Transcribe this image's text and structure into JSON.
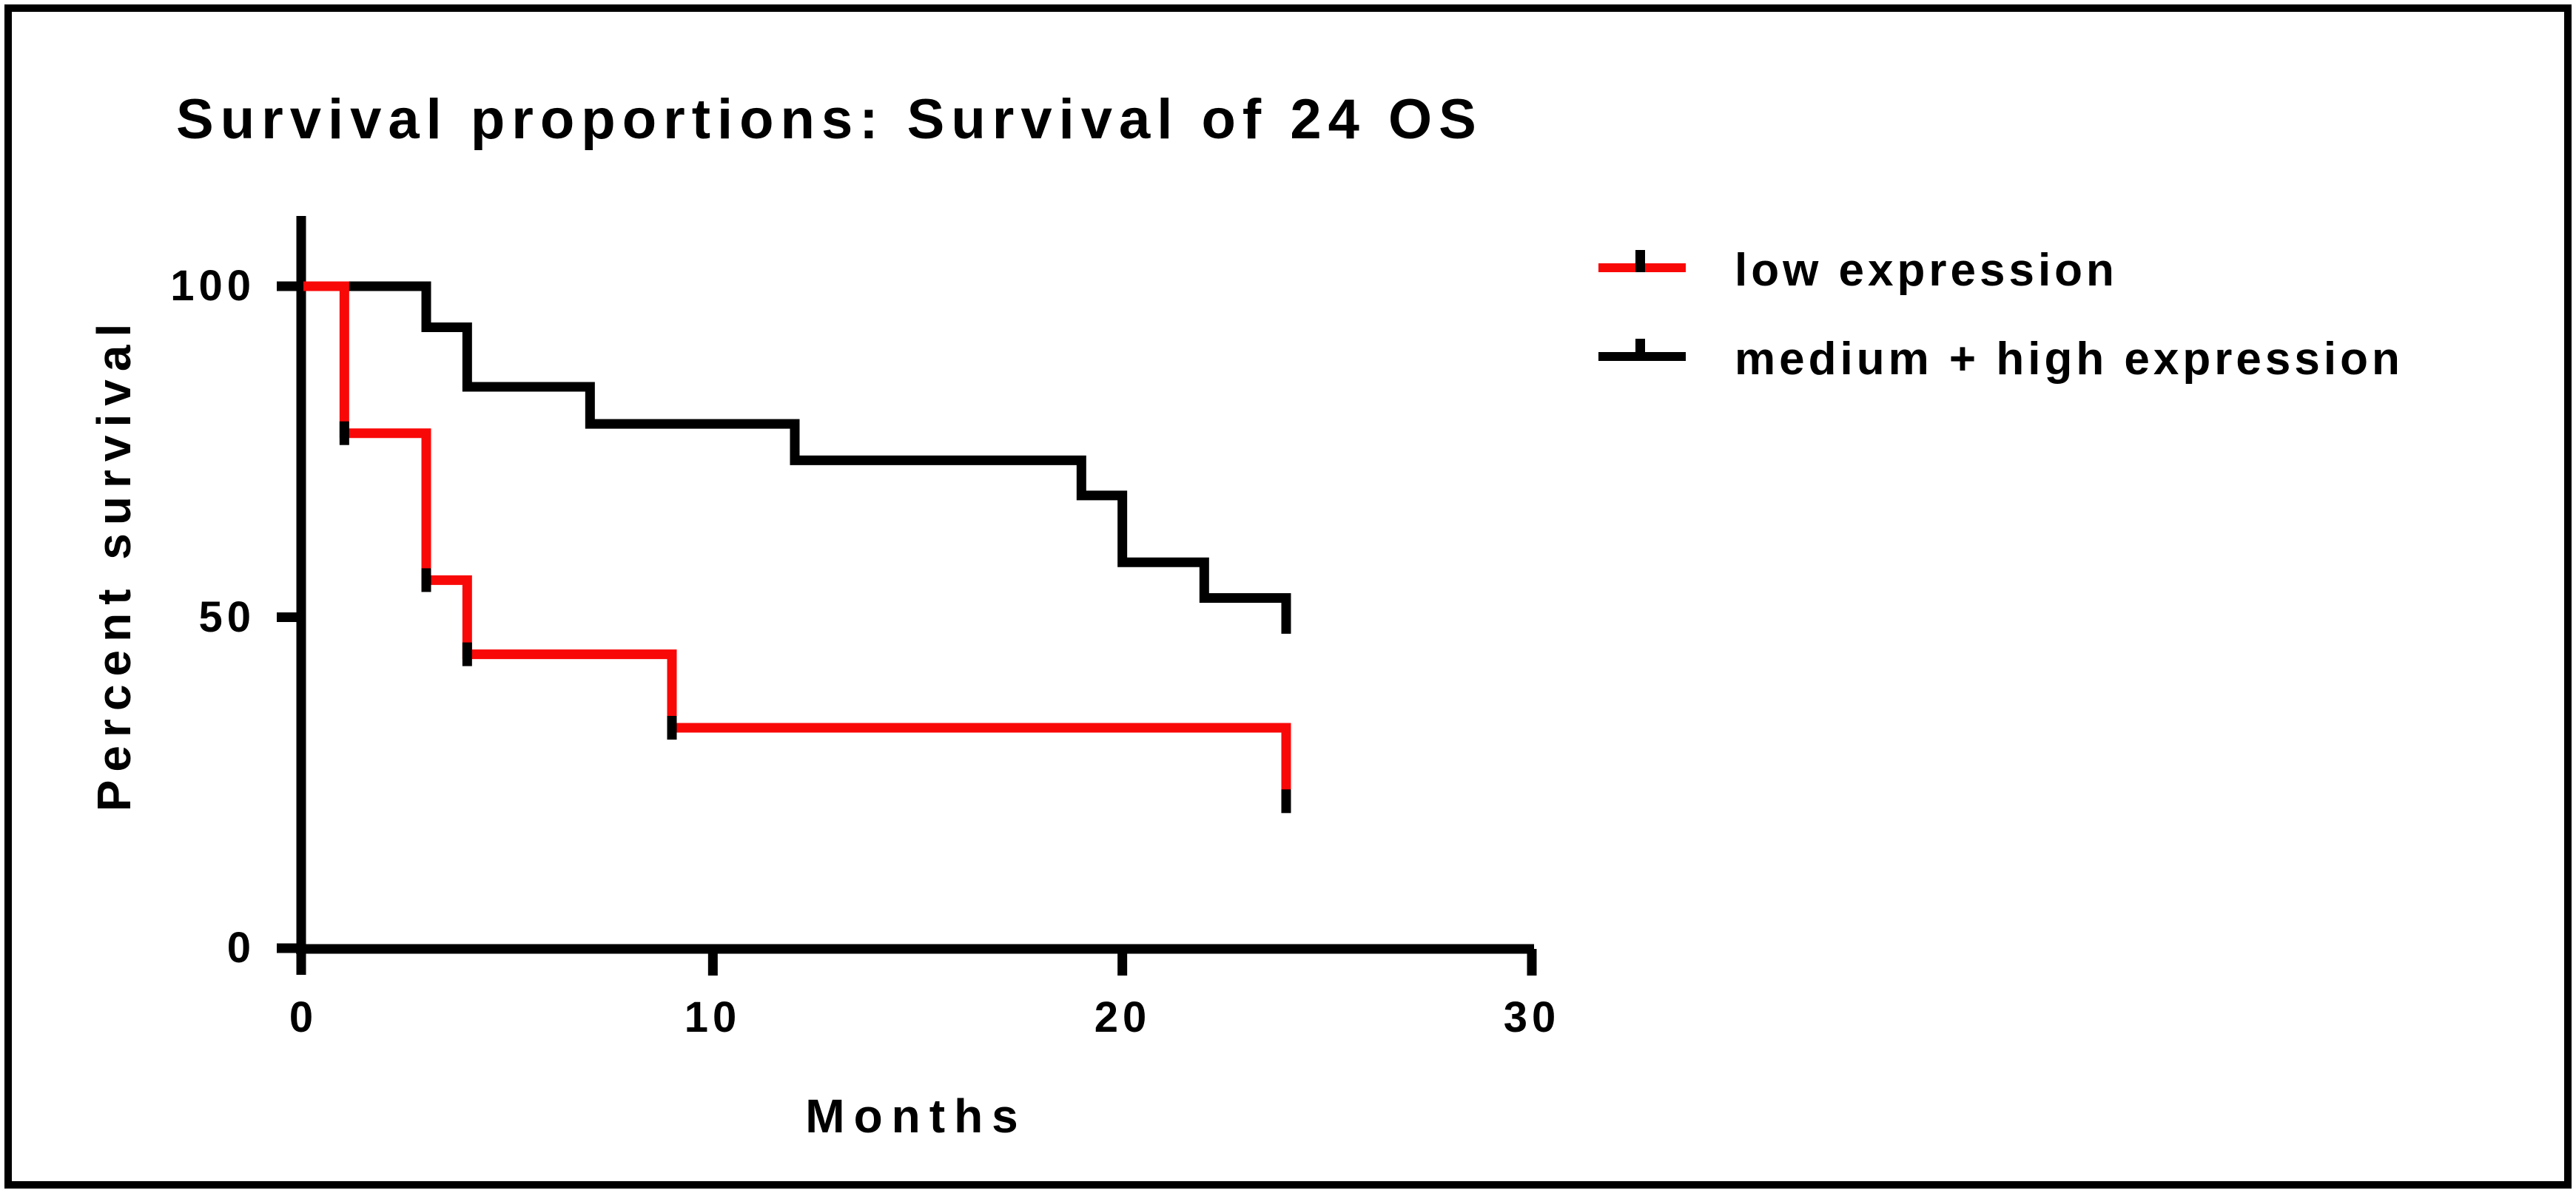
{
  "figure": {
    "title": "Survival proportions: Survival of 24 OS",
    "background_color": "#ffffff",
    "frame_color": "#000000"
  },
  "axes": {
    "x": {
      "label": "Months",
      "tick_labels": [
        "0",
        "10",
        "20",
        "30"
      ]
    },
    "y": {
      "label": "Percent survival",
      "tick_labels": [
        "100",
        "50",
        "0"
      ]
    }
  },
  "legend": {
    "items": [
      {
        "label": "low expression",
        "color": "#f90808",
        "marker": "line-with-censor-tick"
      },
      {
        "label": "medium + high expression",
        "color": "#000000",
        "marker": "line-with-censor-tick"
      }
    ]
  },
  "chart_data": {
    "type": "line",
    "subtype": "kaplan-meier-step",
    "title": "Survival proportions: Survival of 24 OS",
    "xlabel": "Months",
    "ylabel": "Percent survival",
    "xlim": [
      0,
      30
    ],
    "ylim": [
      0,
      100
    ],
    "x_ticks": [
      0,
      10,
      20,
      30
    ],
    "y_ticks": [
      0,
      50,
      100
    ],
    "grid": false,
    "legend_position": "outside upper right",
    "note": "Right-continuous survival steps: each y value is percent survival immediately after the drop at the paired x (months). Small black ticks on the red curve mark censored/step points.",
    "series": [
      {
        "name": "low expression",
        "color": "#f90808",
        "step": "post",
        "x": [
          0,
          1,
          3,
          4,
          9,
          24
        ],
        "y": [
          100,
          77.8,
          55.6,
          44.4,
          33.3,
          22.2
        ],
        "censor_marks": [
          [
            1,
            77.8
          ],
          [
            3,
            55.6
          ],
          [
            4,
            44.4
          ],
          [
            9,
            33.3
          ],
          [
            24,
            22.2
          ]
        ]
      },
      {
        "name": "medium + high expression",
        "color": "#000000",
        "step": "post",
        "x": [
          0,
          3,
          4,
          7,
          12,
          19,
          20,
          22,
          24
        ],
        "y": [
          100,
          93.8,
          84.8,
          79.2,
          73.7,
          68.4,
          58.3,
          52.9,
          47.5
        ],
        "censor_marks": []
      }
    ]
  }
}
